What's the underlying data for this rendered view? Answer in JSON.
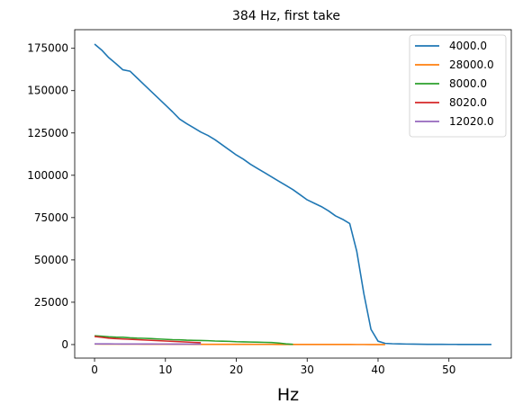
{
  "chart_data": {
    "type": "line",
    "title": "384 Hz, first take",
    "xlabel": "Hz",
    "ylabel": "",
    "xlim": [
      -2.8,
      58.8
    ],
    "ylim": [
      -8000,
      186000
    ],
    "xticks": [
      0,
      10,
      20,
      30,
      40,
      50
    ],
    "yticks": [
      0,
      25000,
      50000,
      75000,
      100000,
      125000,
      150000,
      175000
    ],
    "grid": false,
    "legend_position": "top-right",
    "series": [
      {
        "name": "4000.0",
        "color": "#1f77b4",
        "x": [
          0,
          1,
          2,
          3,
          4,
          5,
          6,
          7,
          8,
          9,
          10,
          11,
          12,
          13,
          14,
          15,
          16,
          17,
          18,
          19,
          20,
          21,
          22,
          23,
          24,
          25,
          26,
          27,
          28,
          29,
          30,
          31,
          32,
          33,
          34,
          35,
          36,
          37,
          38,
          39,
          40,
          41,
          42,
          43,
          44,
          45,
          46,
          47,
          48,
          49,
          50,
          51,
          52,
          53,
          54,
          55,
          56
        ],
        "y": [
          177500,
          174000,
          169500,
          166000,
          162300,
          161500,
          157500,
          153500,
          149500,
          145500,
          141500,
          137500,
          133200,
          130500,
          128000,
          125500,
          123500,
          121000,
          118000,
          115000,
          112000,
          109500,
          106500,
          104000,
          101500,
          99000,
          96500,
          94000,
          91500,
          88500,
          85500,
          83500,
          81500,
          79000,
          76000,
          74000,
          71500,
          55000,
          30000,
          9000,
          2000,
          700,
          500,
          400,
          300,
          250,
          200,
          150,
          130,
          120,
          110,
          100,
          90,
          80,
          70,
          60,
          50
        ]
      },
      {
        "name": "28000.0",
        "color": "#ff7f0e",
        "x": [
          0,
          1,
          2,
          3,
          4,
          5,
          6,
          7,
          8,
          9,
          10,
          11,
          12,
          13,
          14,
          15,
          16,
          17,
          18,
          19,
          20,
          21,
          22,
          23,
          24,
          25,
          26,
          27,
          28,
          29,
          30,
          31,
          32,
          33,
          34,
          35,
          36,
          37,
          38,
          39,
          40,
          41
        ],
        "y": [
          300,
          290,
          280,
          270,
          260,
          250,
          240,
          230,
          220,
          210,
          200,
          190,
          180,
          170,
          160,
          150,
          145,
          140,
          135,
          130,
          125,
          120,
          115,
          110,
          105,
          100,
          95,
          90,
          85,
          80,
          75,
          70,
          65,
          60,
          55,
          50,
          45,
          40,
          35,
          30,
          25,
          20
        ]
      },
      {
        "name": "8000.0",
        "color": "#2ca02c",
        "x": [
          0,
          1,
          2,
          3,
          4,
          5,
          6,
          7,
          8,
          9,
          10,
          11,
          12,
          13,
          14,
          15,
          16,
          17,
          18,
          19,
          20,
          21,
          22,
          23,
          24,
          25,
          26,
          27,
          28
        ],
        "y": [
          5200,
          4900,
          4600,
          4400,
          4300,
          4000,
          3800,
          3700,
          3500,
          3300,
          3100,
          2900,
          2800,
          2600,
          2500,
          2400,
          2300,
          2100,
          2000,
          1900,
          1700,
          1600,
          1500,
          1400,
          1300,
          1200,
          900,
          400,
          150
        ]
      },
      {
        "name": "8020.0",
        "color": "#d62728",
        "x": [
          0,
          1,
          2,
          3,
          4,
          5,
          6,
          7,
          8,
          9,
          10,
          11,
          12,
          13,
          14,
          15
        ],
        "y": [
          4800,
          4300,
          3800,
          3500,
          3300,
          3100,
          2900,
          2700,
          2500,
          2300,
          2100,
          1900,
          1700,
          1500,
          1300,
          1100
        ]
      },
      {
        "name": "12020.0",
        "color": "#9467bd",
        "x": [
          0,
          1,
          2,
          3,
          4,
          5,
          6,
          7,
          8,
          9,
          10,
          11,
          12,
          13,
          14,
          15
        ],
        "y": [
          400,
          390,
          380,
          370,
          360,
          350,
          340,
          330,
          320,
          310,
          300,
          290,
          280,
          270,
          260,
          250
        ]
      }
    ]
  }
}
